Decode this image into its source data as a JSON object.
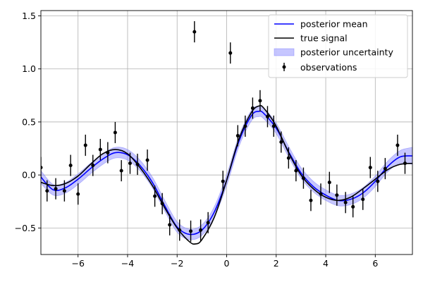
{
  "chart_data": {
    "type": "line",
    "title": "",
    "xlabel": "",
    "ylabel": "",
    "xlim": [
      -7.5,
      7.5
    ],
    "ylim": [
      -0.75,
      1.55
    ],
    "xticks": [
      -6,
      -4,
      -2,
      0,
      2,
      4,
      6
    ],
    "yticks": [
      -0.5,
      0.0,
      0.5,
      1.0,
      1.5
    ],
    "xtick_labels": [
      "−6",
      "−4",
      "−2",
      "0",
      "2",
      "4",
      "6"
    ],
    "ytick_labels": [
      "−0.5",
      "0.0",
      "0.5",
      "1.0",
      "1.5"
    ],
    "grid": true,
    "legend_position": "upper right",
    "legend": [
      {
        "label": "posterior mean",
        "kind": "line",
        "color": "#0000ff"
      },
      {
        "label": "true signal",
        "kind": "line",
        "color": "#000000"
      },
      {
        "label": "posterior uncertainty",
        "kind": "band",
        "color": "#8080ff"
      },
      {
        "label": "observations",
        "kind": "errorbar",
        "color": "#000000"
      }
    ],
    "series": [
      {
        "name": "true signal",
        "color": "#000000",
        "x": [
          -7.5,
          -7.0,
          -6.5,
          -6.0,
          -5.5,
          -5.0,
          -4.5,
          -4.0,
          -3.5,
          -3.0,
          -2.5,
          -2.0,
          -1.5,
          -1.25,
          -1.0,
          -0.5,
          0.0,
          0.5,
          1.0,
          1.3,
          1.5,
          2.0,
          2.5,
          3.0,
          3.5,
          4.0,
          4.5,
          5.0,
          5.5,
          6.0,
          6.5,
          7.0,
          7.5
        ],
        "y": [
          -0.07,
          -0.1,
          -0.08,
          -0.01,
          0.1,
          0.2,
          0.24,
          0.2,
          0.07,
          -0.1,
          -0.31,
          -0.5,
          -0.63,
          -0.65,
          -0.61,
          -0.4,
          -0.05,
          0.34,
          0.59,
          0.65,
          0.63,
          0.46,
          0.21,
          0.0,
          -0.13,
          -0.21,
          -0.24,
          -0.21,
          -0.13,
          -0.04,
          0.05,
          0.1,
          0.11
        ]
      },
      {
        "name": "posterior mean",
        "color": "#0000ff",
        "x": [
          -7.5,
          -7.0,
          -6.5,
          -6.0,
          -5.5,
          -5.0,
          -4.5,
          -4.0,
          -3.5,
          -3.0,
          -2.5,
          -2.0,
          -1.5,
          -1.0,
          -0.5,
          0.0,
          0.5,
          1.0,
          1.3,
          1.5,
          2.0,
          2.5,
          3.0,
          3.5,
          4.0,
          4.5,
          5.0,
          5.5,
          6.0,
          6.5,
          7.0,
          7.5
        ],
        "y": [
          -0.02,
          -0.14,
          -0.12,
          -0.04,
          0.06,
          0.15,
          0.21,
          0.19,
          0.09,
          -0.07,
          -0.29,
          -0.49,
          -0.56,
          -0.52,
          -0.35,
          -0.05,
          0.32,
          0.56,
          0.6,
          0.58,
          0.44,
          0.22,
          0.02,
          -0.11,
          -0.19,
          -0.24,
          -0.23,
          -0.17,
          -0.06,
          0.08,
          0.17,
          0.18
        ]
      }
    ],
    "uncertainty_band": {
      "x": [
        -7.5,
        -7.0,
        -6.5,
        -6.0,
        -5.5,
        -5.0,
        -4.5,
        -4.0,
        -3.5,
        -3.0,
        -2.5,
        -2.0,
        -1.5,
        -1.0,
        -0.5,
        0.0,
        0.5,
        1.0,
        1.3,
        1.5,
        2.0,
        2.5,
        3.0,
        3.5,
        4.0,
        4.5,
        5.0,
        5.5,
        6.0,
        6.5,
        7.0,
        7.5
      ],
      "lower": [
        -0.08,
        -0.19,
        -0.17,
        -0.09,
        0.01,
        0.1,
        0.16,
        0.14,
        0.04,
        -0.12,
        -0.34,
        -0.54,
        -0.61,
        -0.57,
        -0.4,
        -0.1,
        0.27,
        0.51,
        0.55,
        0.53,
        0.39,
        0.17,
        -0.03,
        -0.16,
        -0.24,
        -0.29,
        -0.28,
        -0.22,
        -0.11,
        0.03,
        0.11,
        0.1
      ],
      "upper": [
        0.04,
        -0.09,
        -0.07,
        0.01,
        0.11,
        0.2,
        0.26,
        0.24,
        0.14,
        -0.02,
        -0.24,
        -0.44,
        -0.51,
        -0.47,
        -0.3,
        0.0,
        0.37,
        0.61,
        0.65,
        0.63,
        0.49,
        0.27,
        0.07,
        -0.06,
        -0.14,
        -0.19,
        -0.18,
        -0.12,
        -0.01,
        0.13,
        0.23,
        0.26
      ]
    },
    "observations": {
      "error": 0.1,
      "x": [
        -7.5,
        -7.25,
        -6.9,
        -6.55,
        -6.3,
        -6.0,
        -5.7,
        -5.4,
        -5.1,
        -4.8,
        -4.5,
        -4.25,
        -3.9,
        -3.6,
        -3.2,
        -2.9,
        -2.6,
        -2.3,
        -1.9,
        -1.45,
        -1.3,
        -1.05,
        -0.75,
        -0.15,
        0.15,
        0.45,
        0.75,
        1.05,
        1.35,
        1.65,
        1.9,
        2.2,
        2.5,
        2.8,
        3.1,
        3.4,
        3.8,
        4.15,
        4.45,
        4.8,
        5.1,
        5.5,
        5.8,
        6.1,
        6.4,
        6.9,
        7.2
      ],
      "y": [
        0.07,
        -0.15,
        -0.13,
        -0.15,
        0.09,
        -0.18,
        0.28,
        0.09,
        0.24,
        0.21,
        0.4,
        0.04,
        0.11,
        0.1,
        0.14,
        -0.2,
        -0.27,
        -0.47,
        -0.52,
        -0.53,
        1.35,
        -0.52,
        -0.45,
        -0.06,
        1.15,
        0.37,
        0.46,
        0.63,
        0.7,
        0.55,
        0.46,
        0.31,
        0.16,
        0.04,
        -0.03,
        -0.24,
        -0.18,
        -0.07,
        -0.19,
        -0.26,
        -0.3,
        -0.23,
        0.07,
        -0.06,
        0.06,
        0.28,
        0.11
      ]
    }
  }
}
